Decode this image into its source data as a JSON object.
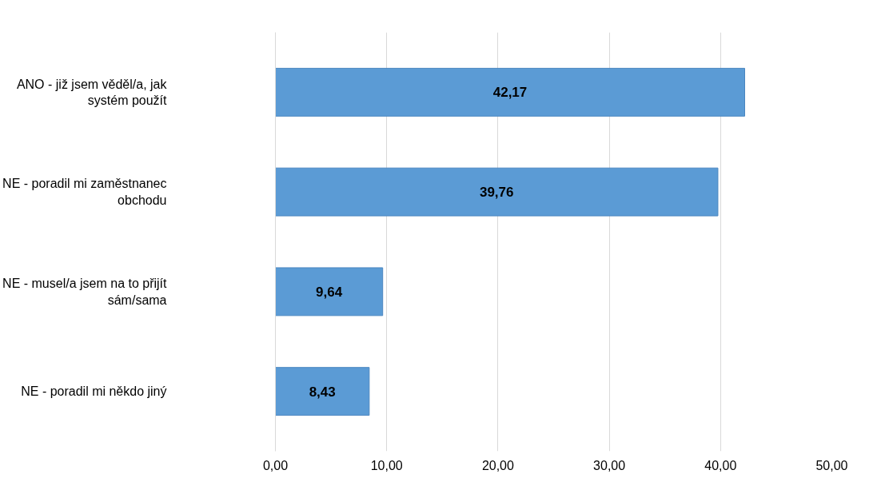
{
  "chart_data": {
    "type": "bar",
    "orientation": "horizontal",
    "categories": [
      "ANO - již jsem věděl/a, jak systém použít",
      "NE - poradil mi zaměstnanec obchodu",
      "NE - musel/a jsem na to přijít sám/sama",
      "NE - poradil mi někdo jiný"
    ],
    "values": [
      42.17,
      39.76,
      9.64,
      8.43
    ],
    "value_labels": [
      "42,17",
      "39,76",
      "9,64",
      "8,43"
    ],
    "color": "#5b9bd5",
    "xlim": [
      0,
      50
    ],
    "xticks": [
      {
        "value": 0,
        "label": "0,00"
      },
      {
        "value": 10,
        "label": "10,00"
      },
      {
        "value": 20,
        "label": "20,00"
      },
      {
        "value": 30,
        "label": "30,00"
      },
      {
        "value": 40,
        "label": "40,00"
      },
      {
        "value": 50,
        "label": "50,00"
      }
    ],
    "grid": "x"
  }
}
